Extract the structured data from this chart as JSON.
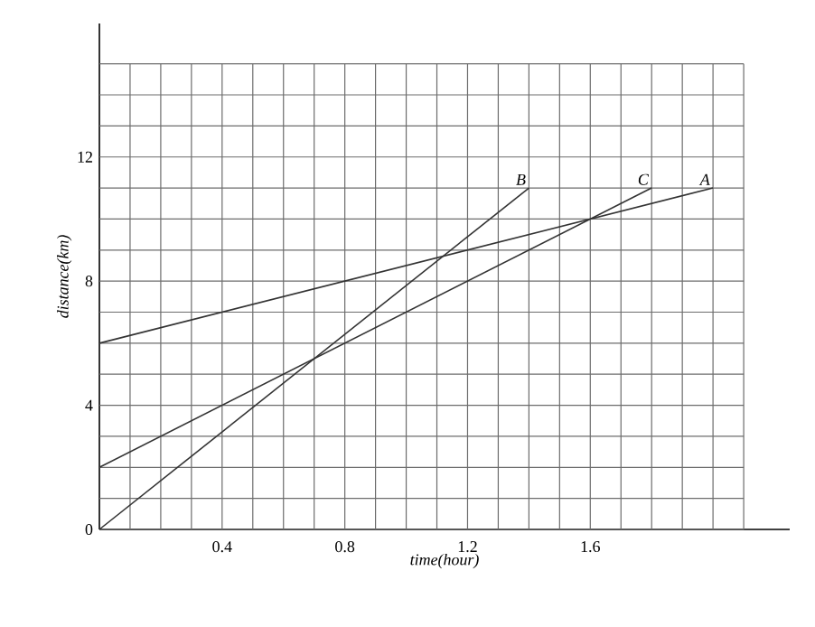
{
  "chart_data": {
    "type": "line",
    "xlabel": "time(hour)",
    "ylabel": "distance(km)",
    "series": [
      {
        "name": "A",
        "color": "#333333",
        "x": [
          0,
          2.0
        ],
        "values": [
          6,
          11
        ]
      },
      {
        "name": "B",
        "color": "#333333",
        "x": [
          0,
          1.4
        ],
        "values": [
          0,
          11
        ]
      },
      {
        "name": "C",
        "color": "#333333",
        "x": [
          0,
          1.8
        ],
        "values": [
          2,
          11
        ]
      }
    ],
    "xlim": [
      0,
      2.25
    ],
    "ylim": [
      0,
      16.3
    ],
    "xticks": [
      {
        "value": 0.1,
        "label": null
      },
      {
        "value": 0.2,
        "label": null
      },
      {
        "value": 0.3,
        "label": null
      },
      0.4,
      {
        "value": 0.5,
        "label": null
      },
      {
        "value": 0.6,
        "label": null
      },
      {
        "value": 0.7,
        "label": null
      },
      0.8,
      {
        "value": 0.9,
        "label": null
      },
      {
        "value": 1.0,
        "label": null
      },
      {
        "value": 1.1,
        "label": null
      },
      1.2,
      {
        "value": 1.3,
        "label": null
      },
      {
        "value": 1.4,
        "label": null
      },
      {
        "value": 1.5,
        "label": null
      },
      1.6,
      {
        "value": 1.7,
        "label": null
      },
      {
        "value": 1.8,
        "label": null
      },
      {
        "value": 1.9,
        "label": null
      },
      {
        "value": 2.0,
        "label": null
      },
      {
        "value": 2.1,
        "label": null
      }
    ],
    "yticks": [
      0,
      {
        "value": 1,
        "label": null
      },
      {
        "value": 2,
        "label": null
      },
      {
        "value": 3,
        "label": null
      },
      4,
      {
        "value": 5,
        "label": null
      },
      {
        "value": 6,
        "label": null
      },
      {
        "value": 7,
        "label": null
      },
      8,
      {
        "value": 9,
        "label": null
      },
      {
        "value": 10,
        "label": null
      },
      {
        "value": 11,
        "label": null
      },
      12,
      {
        "value": 13,
        "label": null
      },
      {
        "value": 14,
        "label": null
      },
      {
        "value": 15,
        "label": null
      }
    ],
    "grid": true,
    "marker": "none",
    "line_style": "solid"
  }
}
